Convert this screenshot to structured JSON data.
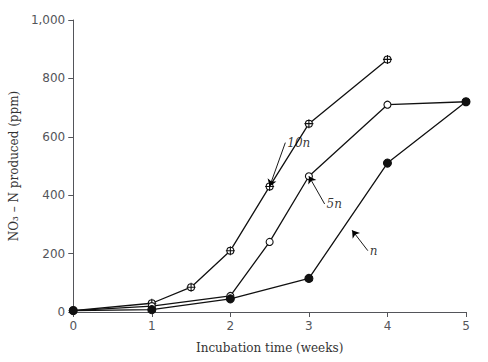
{
  "chart_data": {
    "type": "line",
    "xlabel": "Incubation time (weeks)",
    "ylabel": "NO₃ – N produced (ppm)",
    "xlim": [
      0,
      5
    ],
    "ylim": [
      0,
      1000
    ],
    "xticks": [
      0,
      1,
      2,
      3,
      4,
      5
    ],
    "yticks": [
      0,
      200,
      400,
      600,
      800,
      1000
    ],
    "grid": false,
    "series": [
      {
        "x": [
          0,
          1,
          1.5,
          2,
          2.5,
          3,
          4
        ],
        "values": [
          5,
          30,
          85,
          210,
          430,
          645,
          865
        ],
        "marker": "open_cross",
        "color": "#111111"
      },
      {
        "x": [
          0,
          1,
          2,
          2.5,
          3,
          4,
          5
        ],
        "values": [
          5,
          20,
          55,
          240,
          465,
          710,
          720
        ],
        "marker": "open",
        "color": "#111111"
      },
      {
        "x": [
          0,
          1,
          2,
          3,
          4,
          5
        ],
        "values": [
          5,
          8,
          45,
          115,
          510,
          720
        ],
        "marker": "filled",
        "color": "#111111"
      }
    ],
    "annotations": [
      {
        "text": "10n",
        "xy": [
          2.5,
          430
        ],
        "xytext": [
          2.7,
          580
        ]
      },
      {
        "text": "5n",
        "xy": [
          3.0,
          465
        ],
        "xytext": [
          3.2,
          370
        ]
      },
      {
        "text": "n",
        "xy": [
          3.55,
          280
        ],
        "xytext": [
          3.75,
          210
        ]
      }
    ]
  }
}
